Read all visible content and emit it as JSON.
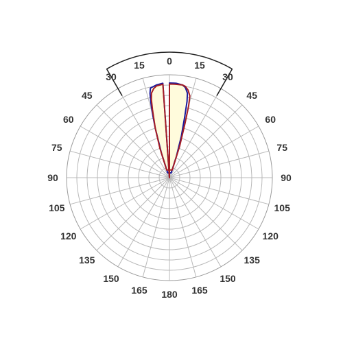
{
  "chart_data": {
    "type": "polar",
    "title": "",
    "angle_unit": "degrees",
    "rings": 10,
    "radial_lines_every_deg": 15,
    "highlight_sector_deg": 30,
    "angle_tick_labels": [
      {
        "angle": 0,
        "label": "0"
      },
      {
        "angle": 15,
        "label": "15"
      },
      {
        "angle": -15,
        "label": "15"
      },
      {
        "angle": 30,
        "label": "30"
      },
      {
        "angle": -30,
        "label": "30"
      },
      {
        "angle": 45,
        "label": "45"
      },
      {
        "angle": -45,
        "label": "45"
      },
      {
        "angle": 60,
        "label": "60"
      },
      {
        "angle": -60,
        "label": "60"
      },
      {
        "angle": 75,
        "label": "75"
      },
      {
        "angle": -75,
        "label": "75"
      },
      {
        "angle": 90,
        "label": "90"
      },
      {
        "angle": -90,
        "label": "90"
      },
      {
        "angle": 105,
        "label": "105"
      },
      {
        "angle": -105,
        "label": "105"
      },
      {
        "angle": 120,
        "label": "120"
      },
      {
        "angle": -120,
        "label": "120"
      },
      {
        "angle": 135,
        "label": "135"
      },
      {
        "angle": -135,
        "label": "135"
      },
      {
        "angle": 150,
        "label": "150"
      },
      {
        "angle": -150,
        "label": "150"
      },
      {
        "angle": 165,
        "label": "165"
      },
      {
        "angle": -165,
        "label": "165"
      },
      {
        "angle": 180,
        "label": "180"
      }
    ],
    "series": [
      {
        "color": "#1a1a9e",
        "fill": "#fffbdc",
        "points": [
          [
            0,
            0.92
          ],
          [
            4,
            0.92
          ],
          [
            8,
            0.91
          ],
          [
            10,
            0.89
          ],
          [
            12,
            0.84
          ],
          [
            13,
            0.76
          ],
          [
            14,
            0.62
          ],
          [
            16,
            0.42
          ],
          [
            18,
            0.22
          ],
          [
            20,
            0.05
          ],
          [
            -20,
            0.05
          ],
          [
            -18,
            0.25
          ],
          [
            -16,
            0.5
          ],
          [
            -15,
            0.62
          ],
          [
            -14,
            0.74
          ],
          [
            -13,
            0.84
          ],
          [
            -12,
            0.89
          ],
          [
            -8,
            0.91
          ],
          [
            -4,
            0.92
          ]
        ]
      },
      {
        "color": "#a51d24",
        "fill": "none",
        "points": [
          [
            0,
            0.91
          ],
          [
            4,
            0.91
          ],
          [
            8,
            0.91
          ],
          [
            10,
            0.9
          ],
          [
            12,
            0.87
          ],
          [
            14,
            0.82
          ],
          [
            15,
            0.72
          ],
          [
            16,
            0.55
          ],
          [
            18,
            0.32
          ],
          [
            20,
            0.08
          ],
          [
            -20,
            0.08
          ],
          [
            -18,
            0.3
          ],
          [
            -16,
            0.5
          ],
          [
            -14,
            0.68
          ],
          [
            -13,
            0.78
          ],
          [
            -12,
            0.84
          ],
          [
            -10,
            0.88
          ],
          [
            -8,
            0.9
          ],
          [
            -4,
            0.91
          ]
        ]
      }
    ]
  }
}
